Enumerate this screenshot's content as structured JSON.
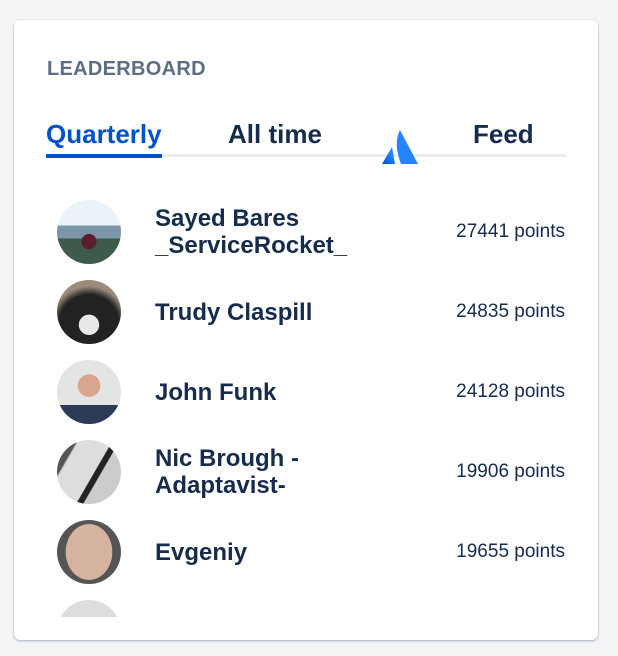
{
  "leaderboard": {
    "title": "LEADERBOARD",
    "tabs": [
      {
        "label": "Quarterly",
        "active": true
      },
      {
        "label": "All time",
        "active": false
      },
      {
        "icon": "atlassian-logo-icon"
      },
      {
        "label": "Feed",
        "active": false
      }
    ],
    "accent_color": "#0052cc",
    "entries": [
      {
        "name": "Sayed Bares _ServiceRocket_",
        "points": "27441 points"
      },
      {
        "name": "Trudy Claspill",
        "points": "24835 points"
      },
      {
        "name": "John Funk",
        "points": "24128 points"
      },
      {
        "name": "Nic Brough -Adaptavist-",
        "points": "19906 points"
      },
      {
        "name": "Evgeniy",
        "points": "19655 points"
      }
    ]
  }
}
